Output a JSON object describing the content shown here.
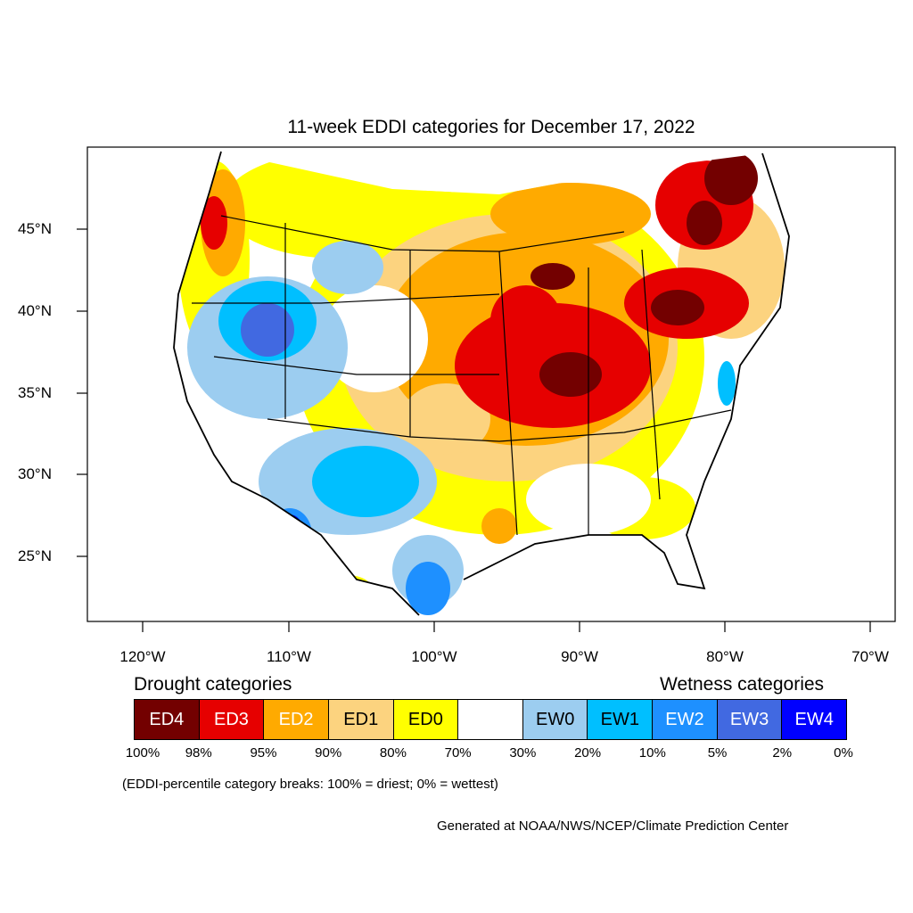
{
  "title": "11-week EDDI categories for December 17, 2022",
  "lat_labels": [
    "45°N",
    "40°N",
    "35°N",
    "30°N",
    "25°N"
  ],
  "lon_labels": [
    "120°W",
    "110°W",
    "100°W",
    "90°W",
    "80°W",
    "70°W"
  ],
  "legend": {
    "drought_heading": "Drought categories",
    "wetness_heading": "Wetness categories",
    "categories": [
      {
        "label": "ED4",
        "color": "#730000",
        "text_color": "#ffffff"
      },
      {
        "label": "ED3",
        "color": "#e60000",
        "text_color": "#ffffff"
      },
      {
        "label": "ED2",
        "color": "#ffaa00",
        "text_color": "#ffffff"
      },
      {
        "label": "ED1",
        "color": "#fcd37f",
        "text_color": "#000000"
      },
      {
        "label": "ED0",
        "color": "#ffff00",
        "text_color": "#000000"
      },
      {
        "label": "",
        "color": "#ffffff",
        "text_color": "#000000"
      },
      {
        "label": "EW0",
        "color": "#9ccdf0",
        "text_color": "#000000"
      },
      {
        "label": "EW1",
        "color": "#00bfff",
        "text_color": "#000000"
      },
      {
        "label": "EW2",
        "color": "#1e90ff",
        "text_color": "#ffffff"
      },
      {
        "label": "EW3",
        "color": "#4169e1",
        "text_color": "#ffffff"
      },
      {
        "label": "EW4",
        "color": "#0000ff",
        "text_color": "#ffffff"
      }
    ],
    "breaks": [
      "100%",
      "98%",
      "95%",
      "90%",
      "80%",
      "70%",
      "30%",
      "20%",
      "10%",
      "5%",
      "2%",
      "0%"
    ],
    "note": "(EDDI-percentile category breaks: 100% = driest; 0% = wettest)"
  },
  "credit": "Generated at NOAA/NWS/NCEP/Climate Prediction Center"
}
